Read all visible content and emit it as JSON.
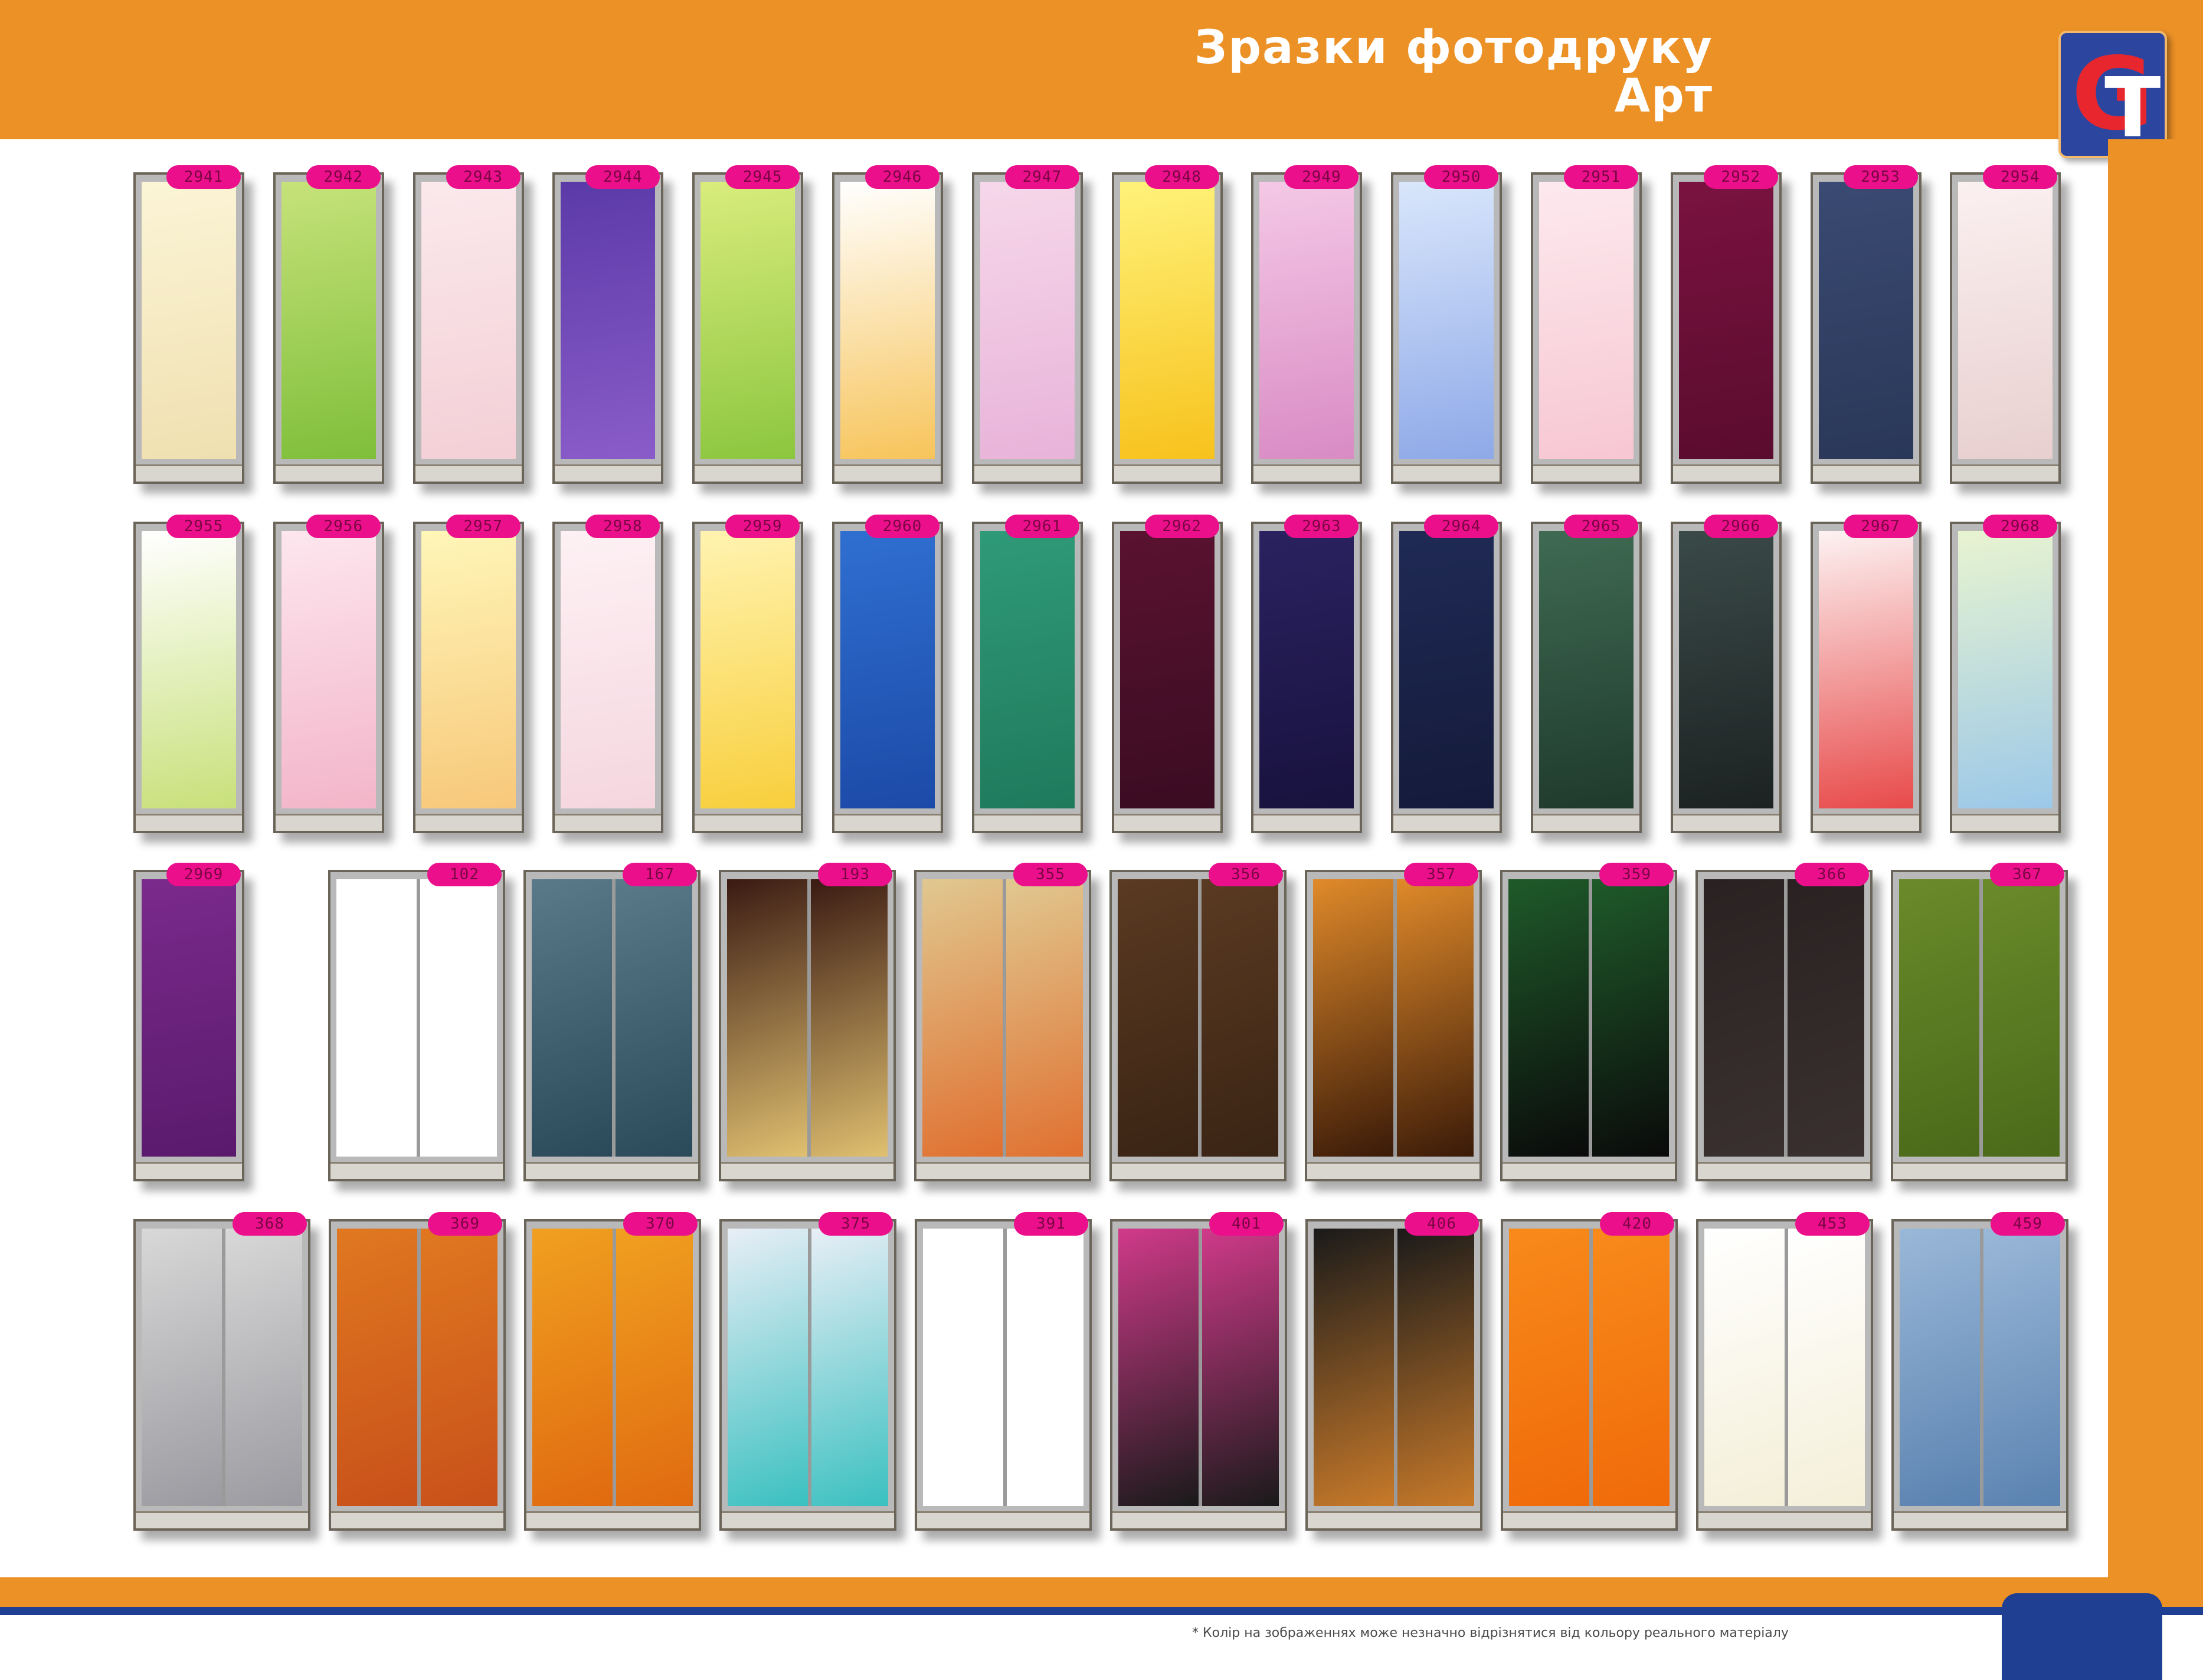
{
  "header": {
    "title_line1": "Зразки фотодруку",
    "title_line2": "Арт",
    "logo_text": "GT"
  },
  "rows": [
    {
      "items": [
        {
          "code": "2941",
          "colors": [
            "#fbf4d6",
            "#f0e0b0"
          ]
        },
        {
          "code": "2942",
          "colors": [
            "#c6e27a",
            "#7fbf3a"
          ]
        },
        {
          "code": "2943",
          "colors": [
            "#fbe9ec",
            "#f3cfd6"
          ]
        },
        {
          "code": "2944",
          "colors": [
            "#5b3aa8",
            "#8a5cc9"
          ]
        },
        {
          "code": "2945",
          "colors": [
            "#d9ec7c",
            "#8cc63f"
          ]
        },
        {
          "code": "2946",
          "colors": [
            "#ffffff",
            "#f7c45a"
          ]
        },
        {
          "code": "2947",
          "colors": [
            "#f6d7ea",
            "#e8b3d9"
          ]
        },
        {
          "code": "2948",
          "colors": [
            "#fff27a",
            "#f7c21c"
          ]
        },
        {
          "code": "2949",
          "colors": [
            "#f4c8e6",
            "#d98bc4"
          ]
        },
        {
          "code": "2950",
          "colors": [
            "#d9e6fb",
            "#8ea9e8"
          ]
        },
        {
          "code": "2951",
          "colors": [
            "#fde9ee",
            "#f7c7d3"
          ]
        },
        {
          "code": "2952",
          "colors": [
            "#7a1240",
            "#5a0c2e"
          ]
        },
        {
          "code": "2953",
          "colors": [
            "#3a4a72",
            "#2a3758"
          ]
        },
        {
          "code": "2954",
          "colors": [
            "#fbf0f0",
            "#e8cfcf"
          ]
        }
      ]
    },
    {
      "items": [
        {
          "code": "2955",
          "colors": [
            "#ffffff",
            "#c8e07a"
          ]
        },
        {
          "code": "2956",
          "colors": [
            "#fde6ee",
            "#f3b5c9"
          ]
        },
        {
          "code": "2957",
          "colors": [
            "#fff6b8",
            "#f7c87a"
          ]
        },
        {
          "code": "2958",
          "colors": [
            "#fdf1f4",
            "#f5d6df"
          ]
        },
        {
          "code": "2959",
          "colors": [
            "#fff3b0",
            "#f8cf3c"
          ]
        },
        {
          "code": "2960",
          "colors": [
            "#2f6fd0",
            "#1c4aa8"
          ]
        },
        {
          "code": "2961",
          "colors": [
            "#2f9a78",
            "#1f7a5c"
          ]
        },
        {
          "code": "2962",
          "colors": [
            "#5a1230",
            "#3a0c22"
          ]
        },
        {
          "code": "2963",
          "colors": [
            "#2a2260",
            "#18123e"
          ]
        },
        {
          "code": "2964",
          "colors": [
            "#1f2a55",
            "#141a3a"
          ]
        },
        {
          "code": "2965",
          "colors": [
            "#3f6a52",
            "#1f3a2c"
          ]
        },
        {
          "code": "2966",
          "colors": [
            "#3a4a48",
            "#1c2222"
          ]
        },
        {
          "code": "2967",
          "colors": [
            "#fdf2f2",
            "#e84a4a"
          ]
        },
        {
          "code": "2968",
          "colors": [
            "#e8f4d0",
            "#9cc8e8"
          ]
        }
      ]
    },
    {
      "items": [
        {
          "code": "2969",
          "colors": [
            "#7a2a8c",
            "#5a1a6c"
          ]
        },
        {
          "code": "102",
          "colors": [
            "#ffffff",
            "#ffffff"
          ]
        },
        {
          "code": "167",
          "colors": [
            "#5a7a8a",
            "#2a4a5a"
          ]
        },
        {
          "code": "193",
          "colors": [
            "#3a1a12",
            "#e0c070"
          ]
        },
        {
          "code": "355",
          "colors": [
            "#e0c890",
            "#e07030"
          ]
        },
        {
          "code": "356",
          "colors": [
            "#5a3a22",
            "#3a2414"
          ]
        },
        {
          "code": "357",
          "colors": [
            "#e08a2a",
            "#3a1a08"
          ]
        },
        {
          "code": "359",
          "colors": [
            "#1f5a2a",
            "#0a0a0a"
          ]
        },
        {
          "code": "366",
          "colors": [
            "#2a2222",
            "#3a3030"
          ]
        },
        {
          "code": "367",
          "colors": [
            "#6a8a2a",
            "#4a6a1a"
          ]
        }
      ]
    },
    {
      "items": [
        {
          "code": "368",
          "colors": [
            "#d8d8d8",
            "#9a9aa0"
          ]
        },
        {
          "code": "369",
          "colors": [
            "#e07820",
            "#c8501a"
          ]
        },
        {
          "code": "370",
          "colors": [
            "#f0a020",
            "#e06a10"
          ]
        },
        {
          "code": "375",
          "colors": [
            "#e8eef6",
            "#3ac0c0"
          ]
        },
        {
          "code": "391",
          "colors": [
            "#ffffff",
            "#ffffff"
          ]
        },
        {
          "code": "401",
          "colors": [
            "#d03a8a",
            "#1a1a1a"
          ]
        },
        {
          "code": "406",
          "colors": [
            "#1a1a1a",
            "#c87a2a"
          ]
        },
        {
          "code": "420",
          "colors": [
            "#f88a1a",
            "#f06a0a"
          ]
        },
        {
          "code": "453",
          "colors": [
            "#ffffff",
            "#f4efd8"
          ]
        },
        {
          "code": "459",
          "colors": [
            "#9ab8d8",
            "#5a82b0"
          ]
        }
      ]
    }
  ],
  "footer": {
    "disclaimer": "* Колір на зображеннях може незначно відрізнятися від кольору реального матеріалу"
  }
}
